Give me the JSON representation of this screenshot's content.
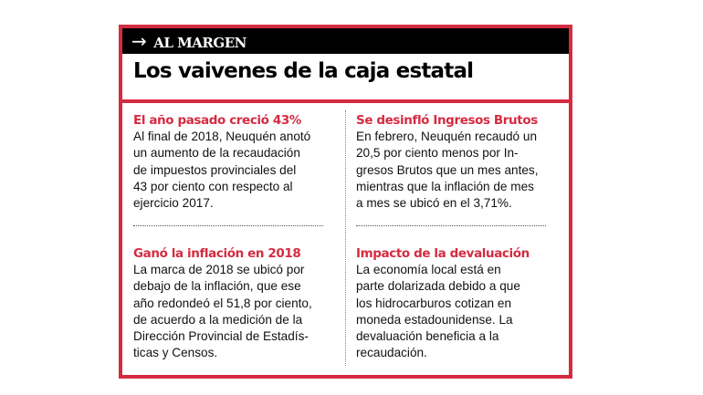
{
  "header": {
    "arrow_icon": "arrow-right-icon",
    "label": "AL MARGEN"
  },
  "title": "Los vaivenes de la caja estatal",
  "sections": [
    {
      "heading": "El año pasado creció 43%",
      "lines": [
        "Al final de 2018, Neuquén anotó",
        "un aumento de la recaudación",
        "de impuestos provinciales del",
        "43 por ciento con respecto al",
        "ejercicio 2017."
      ]
    },
    {
      "heading": "Se desinfló Ingresos Brutos",
      "lines": [
        "En febrero, Neuquén recaudó un",
        "20,5 por ciento menos por In-",
        "gresos Brutos que un mes antes,",
        "mientras que la inflación de mes",
        "a mes se ubicó en el 3,71%."
      ]
    },
    {
      "heading": "Ganó la inflación en 2018",
      "lines": [
        "La marca de 2018 se ubicó por",
        "debajo de la inflación, que ese",
        "año redondeó el 51,8 por ciento,",
        "de acuerdo a la medición de la",
        "Dirección Provincial de Estadís-",
        "ticas y Censos."
      ]
    },
    {
      "heading": "Impacto de la devaluación",
      "lines": [
        "La economía local está en",
        "parte dolarizada debido a que",
        "los hidrocarburos cotizan en",
        "moneda estadounidense. La",
        "devaluación beneficia a la",
        "recaudación."
      ]
    }
  ]
}
